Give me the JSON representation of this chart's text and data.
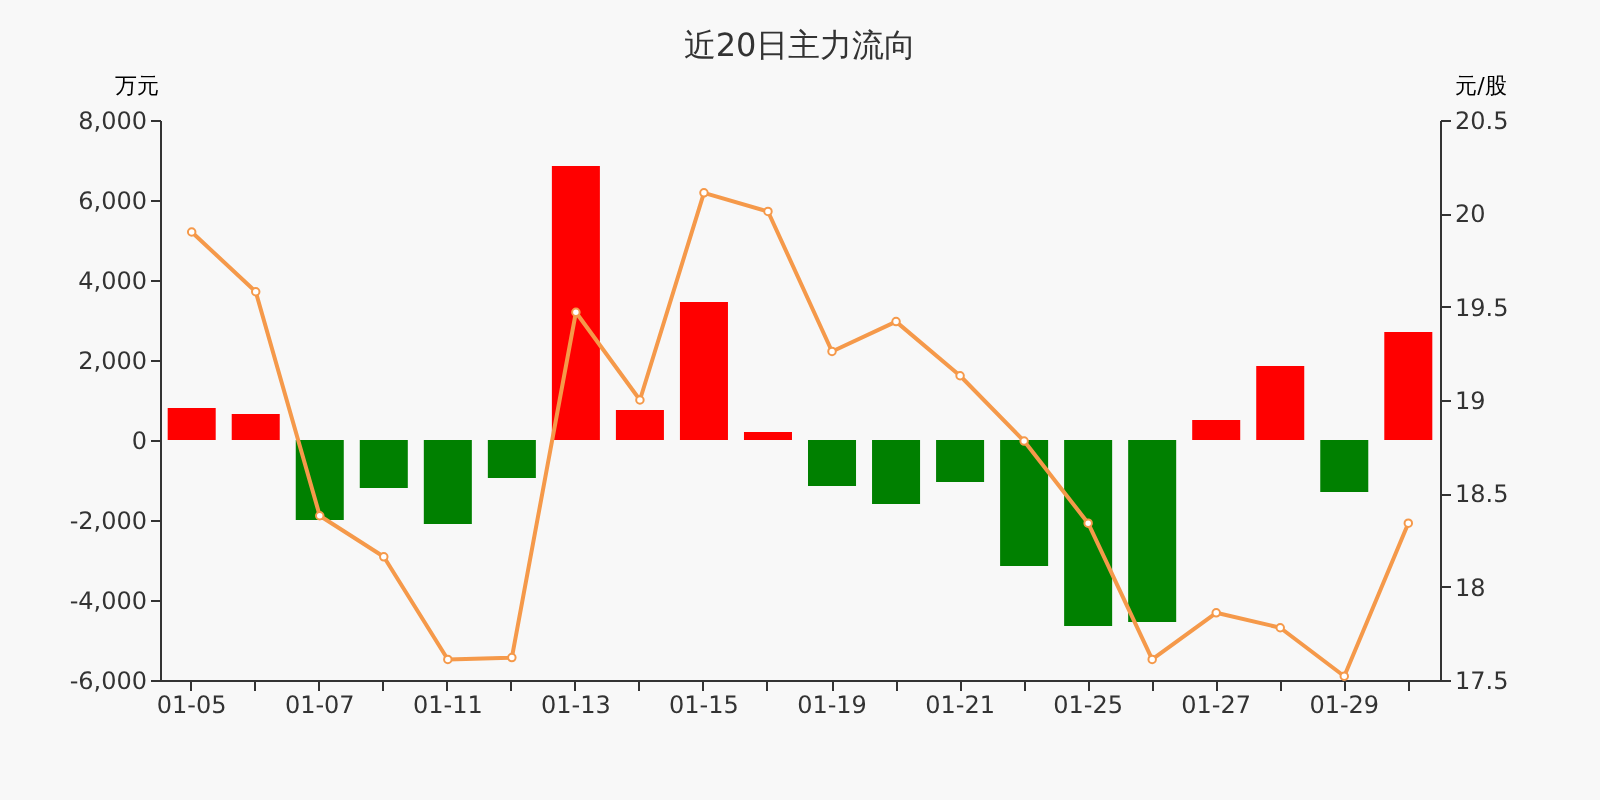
{
  "chart_data": {
    "type": "bar",
    "title": "近20日主力流向",
    "ylabel": "万元",
    "y2label": "元/股",
    "categories": [
      "01-05",
      null,
      "01-07",
      null,
      "01-11",
      null,
      "01-13",
      null,
      "01-15",
      null,
      "01-19",
      null,
      "01-21",
      null,
      "01-25",
      null,
      "01-27",
      null,
      "01-29",
      null
    ],
    "series": [
      {
        "values": [
          800,
          650,
          -2000,
          -1200,
          -2100,
          -950,
          6850,
          750,
          3450,
          200,
          -1150,
          -1600,
          -1050,
          -3150,
          -4650,
          -4550,
          500,
          1850,
          -1300,
          2700
        ],
        "colors": [
          "#ff0000",
          "#ff0000",
          "#008000",
          "#008000",
          "#008000",
          "#008000",
          "#ff0000",
          "#ff0000",
          "#ff0000",
          "#ff0000",
          "#008000",
          "#008000",
          "#008000",
          "#008000",
          "#008000",
          "#008000",
          "#ff0000",
          "#ff0000",
          "#008000",
          "#ff0000"
        ]
      },
      {
        "type": "line",
        "axis": "y2",
        "color": "#f5994a",
        "marker": "circle",
        "values": [
          19.9,
          19.58,
          18.38,
          18.16,
          17.61,
          17.62,
          19.47,
          19.0,
          20.11,
          20.01,
          19.26,
          19.42,
          19.13,
          18.78,
          18.34,
          17.61,
          17.86,
          17.78,
          17.52,
          18.34
        ]
      }
    ],
    "ylim": [
      -6000,
      8000
    ],
    "yticks": [
      {
        "value": -6000,
        "label": "-6,000"
      },
      {
        "value": -4000,
        "label": "-4,000"
      },
      {
        "value": -2000,
        "label": "-2,000"
      },
      0,
      {
        "value": 2000,
        "label": "2,000"
      },
      {
        "value": 4000,
        "label": "4,000"
      },
      {
        "value": 6000,
        "label": "6,000"
      },
      {
        "value": 8000,
        "label": "8,000"
      }
    ],
    "y2lim": [
      17.5,
      20.5
    ],
    "y2ticks": [
      17.5,
      18,
      18.5,
      19,
      19.5,
      20,
      20.5
    ],
    "grid": false
  }
}
